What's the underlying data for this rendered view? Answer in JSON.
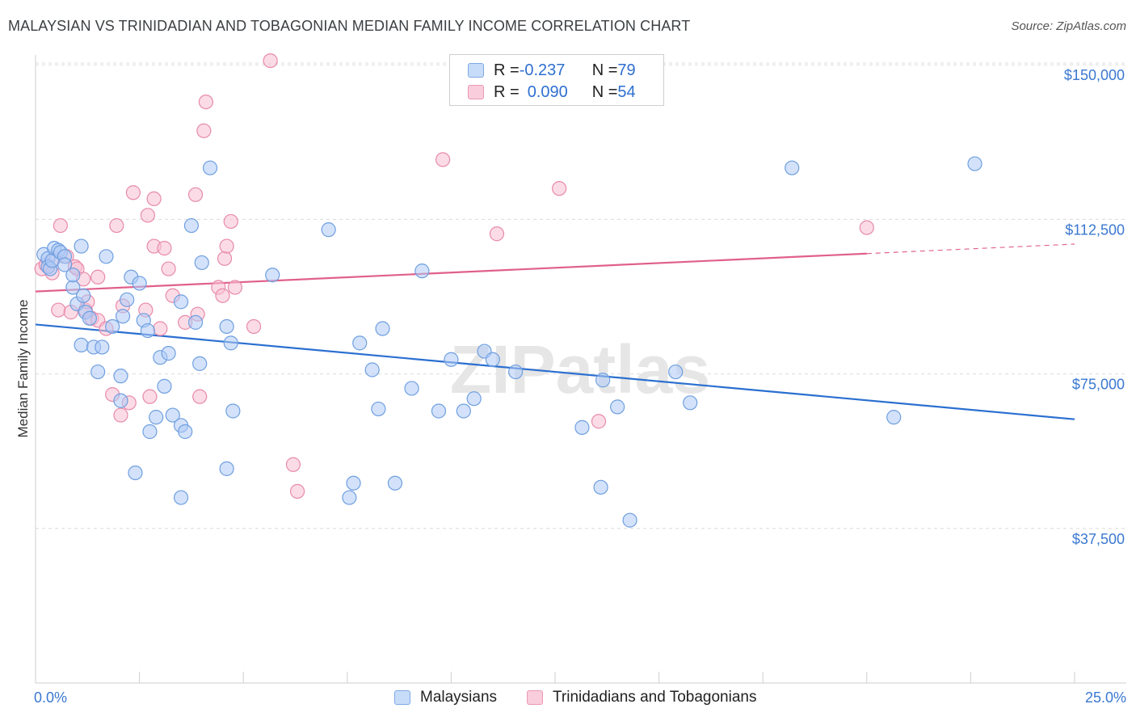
{
  "title": "MALAYSIAN VS TRINIDADIAN AND TOBAGONIAN MEDIAN FAMILY INCOME CORRELATION CHART",
  "source": "Source: ZipAtlas.com",
  "watermark": "ZIPatlas",
  "legend": {
    "rows": [
      {
        "r_label": "R = ",
        "r_value": "-0.237",
        "n_label": "N = ",
        "n_value": "79"
      },
      {
        "r_label": "R = ",
        "r_value": "0.090",
        "n_label": "N = ",
        "n_value": "54"
      }
    ]
  },
  "bottom_legend": [
    "Malaysians",
    "Trinidadians and Tobagonians"
  ],
  "chart_data": {
    "type": "scatter",
    "title": "MALAYSIAN VS TRINIDADIAN AND TOBAGONIAN MEDIAN FAMILY INCOME CORRELATION CHART",
    "xlabel": "",
    "ylabel": "Median Family Income",
    "xlim": [
      0,
      25
    ],
    "ylim": [
      0,
      150000
    ],
    "x_ticks": [
      "0.0%",
      "25.0%"
    ],
    "y_ticks": [
      {
        "value": 37500,
        "label": "$37,500"
      },
      {
        "value": 75000,
        "label": "$75,000"
      },
      {
        "value": 112500,
        "label": "$112,500"
      },
      {
        "value": 150000,
        "label": "$150,000"
      }
    ],
    "grid": true,
    "legend_position": "top-center",
    "colors": {
      "blue_fill": "#aecbf5",
      "blue_stroke": "#6f9fe0",
      "blue_line": "#2b6fd0",
      "pink_fill": "#f7bfd1",
      "pink_stroke": "#e88aaa",
      "pink_line": "#e0608c"
    },
    "series": [
      {
        "name": "Malaysians",
        "color": "#6f9fe0",
        "r": -0.237,
        "n": 79,
        "trend": {
          "x": [
            0,
            25
          ],
          "y": [
            87000,
            64000
          ],
          "dashed_from": null
        },
        "points": [
          [
            0.2,
            104000
          ],
          [
            0.3,
            103000
          ],
          [
            0.3,
            101000
          ],
          [
            0.35,
            100500
          ],
          [
            0.4,
            102500
          ],
          [
            0.45,
            105500
          ],
          [
            0.55,
            105000
          ],
          [
            0.6,
            104500
          ],
          [
            0.7,
            103500
          ],
          [
            0.7,
            101500
          ],
          [
            0.9,
            96000
          ],
          [
            0.9,
            99000
          ],
          [
            1.0,
            92000
          ],
          [
            1.1,
            82000
          ],
          [
            1.1,
            106000
          ],
          [
            1.15,
            94000
          ],
          [
            1.2,
            90000
          ],
          [
            1.3,
            88500
          ],
          [
            1.4,
            81500
          ],
          [
            1.5,
            75500
          ],
          [
            1.6,
            81500
          ],
          [
            1.7,
            103500
          ],
          [
            1.85,
            86500
          ],
          [
            2.05,
            74500
          ],
          [
            2.05,
            68500
          ],
          [
            2.1,
            89000
          ],
          [
            2.2,
            93000
          ],
          [
            2.3,
            98500
          ],
          [
            2.4,
            51000
          ],
          [
            2.5,
            97000
          ],
          [
            2.6,
            88000
          ],
          [
            2.7,
            85500
          ],
          [
            2.75,
            61000
          ],
          [
            2.9,
            64500
          ],
          [
            3.0,
            79000
          ],
          [
            3.1,
            72000
          ],
          [
            3.2,
            80000
          ],
          [
            3.3,
            65000
          ],
          [
            3.5,
            62500
          ],
          [
            3.5,
            92500
          ],
          [
            3.5,
            45000
          ],
          [
            3.6,
            61000
          ],
          [
            3.75,
            111000
          ],
          [
            3.85,
            87500
          ],
          [
            3.95,
            77500
          ],
          [
            4.0,
            102000
          ],
          [
            4.2,
            125000
          ],
          [
            4.6,
            52000
          ],
          [
            4.6,
            86500
          ],
          [
            4.75,
            66000
          ],
          [
            4.7,
            82500
          ],
          [
            5.7,
            99000
          ],
          [
            7.05,
            110000
          ],
          [
            7.55,
            45000
          ],
          [
            7.65,
            48500
          ],
          [
            7.8,
            82500
          ],
          [
            8.1,
            76000
          ],
          [
            8.25,
            66500
          ],
          [
            8.35,
            86000
          ],
          [
            8.65,
            48500
          ],
          [
            9.05,
            71500
          ],
          [
            9.3,
            100000
          ],
          [
            9.7,
            66000
          ],
          [
            10.0,
            78500
          ],
          [
            10.3,
            66000
          ],
          [
            10.55,
            69000
          ],
          [
            10.8,
            80500
          ],
          [
            11.0,
            78500
          ],
          [
            11.55,
            75500
          ],
          [
            13.15,
            62000
          ],
          [
            13.6,
            47500
          ],
          [
            13.65,
            73500
          ],
          [
            14.0,
            67000
          ],
          [
            14.3,
            39500
          ],
          [
            15.4,
            75500
          ],
          [
            15.75,
            68000
          ],
          [
            18.2,
            125000
          ],
          [
            20.65,
            64500
          ],
          [
            22.6,
            126000
          ]
        ]
      },
      {
        "name": "Trinidadians and Tobagonians",
        "color": "#e88aaa",
        "r": 0.09,
        "n": 54,
        "trend": {
          "x": [
            0,
            25
          ],
          "y": [
            95000,
            106500
          ],
          "dashed_from": 20
        },
        "points": [
          [
            0.15,
            100500
          ],
          [
            0.25,
            101500
          ],
          [
            0.3,
            101000
          ],
          [
            0.4,
            99500
          ],
          [
            0.45,
            103000
          ],
          [
            0.55,
            90500
          ],
          [
            0.6,
            111000
          ],
          [
            0.75,
            103500
          ],
          [
            0.85,
            90000
          ],
          [
            0.95,
            101000
          ],
          [
            1.0,
            100500
          ],
          [
            1.15,
            98000
          ],
          [
            1.2,
            90500
          ],
          [
            1.25,
            92500
          ],
          [
            1.35,
            88500
          ],
          [
            1.5,
            98500
          ],
          [
            1.5,
            88000
          ],
          [
            1.7,
            86000
          ],
          [
            1.85,
            70000
          ],
          [
            1.95,
            111000
          ],
          [
            2.05,
            65000
          ],
          [
            2.1,
            91500
          ],
          [
            2.25,
            68000
          ],
          [
            2.35,
            119000
          ],
          [
            2.65,
            90500
          ],
          [
            2.7,
            113500
          ],
          [
            2.75,
            69500
          ],
          [
            2.85,
            117500
          ],
          [
            2.85,
            106000
          ],
          [
            3.0,
            86000
          ],
          [
            3.1,
            105500
          ],
          [
            3.2,
            100500
          ],
          [
            3.3,
            94000
          ],
          [
            3.6,
            87500
          ],
          [
            3.85,
            118500
          ],
          [
            3.9,
            89500
          ],
          [
            3.95,
            69500
          ],
          [
            4.05,
            134000
          ],
          [
            4.1,
            141000
          ],
          [
            4.4,
            96000
          ],
          [
            4.5,
            94000
          ],
          [
            4.55,
            103000
          ],
          [
            4.6,
            106000
          ],
          [
            4.7,
            112000
          ],
          [
            4.8,
            96000
          ],
          [
            5.25,
            86500
          ],
          [
            5.65,
            151000
          ],
          [
            6.2,
            53000
          ],
          [
            6.3,
            46500
          ],
          [
            9.8,
            127000
          ],
          [
            11.1,
            109000
          ],
          [
            12.6,
            120000
          ],
          [
            13.55,
            63500
          ],
          [
            20.0,
            110500
          ]
        ]
      }
    ]
  }
}
